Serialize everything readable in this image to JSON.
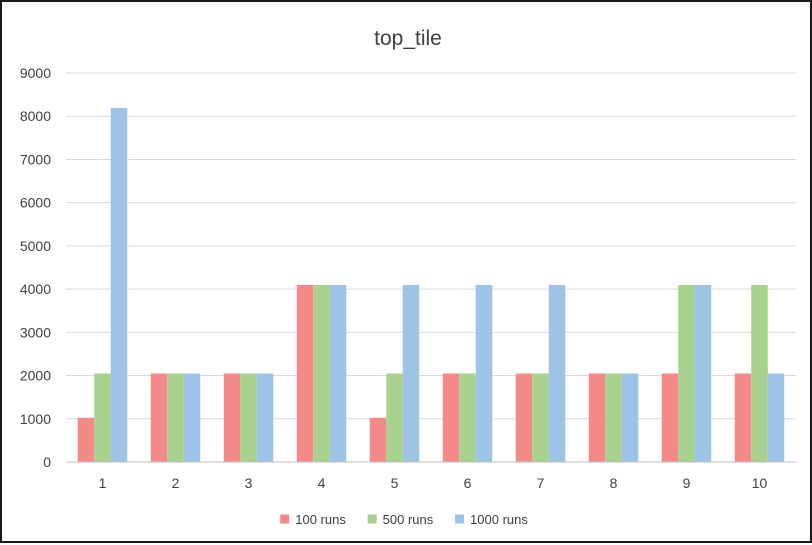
{
  "chart_data": {
    "type": "bar",
    "title": "top_tile",
    "xlabel": "",
    "ylabel": "",
    "categories": [
      "1",
      "2",
      "3",
      "4",
      "5",
      "6",
      "7",
      "8",
      "9",
      "10"
    ],
    "series": [
      {
        "name": "100 runs",
        "color": "#f4898a",
        "values": [
          1024,
          2048,
          2048,
          4096,
          1024,
          2048,
          2048,
          2048,
          2048,
          2048
        ]
      },
      {
        "name": "500 runs",
        "color": "#a9d18e",
        "values": [
          2048,
          2048,
          2048,
          4096,
          2048,
          2048,
          2048,
          2048,
          4096,
          4096
        ]
      },
      {
        "name": "1000 runs",
        "color": "#9dc3e6",
        "values": [
          8192,
          2048,
          2048,
          4096,
          4096,
          4096,
          4096,
          2048,
          4096,
          2048
        ]
      }
    ],
    "ylim": [
      0,
      9000
    ],
    "yticks": [
      0,
      1000,
      2000,
      3000,
      4000,
      5000,
      6000,
      7000,
      8000,
      9000
    ],
    "grid": true,
    "legend_position": "bottom"
  }
}
